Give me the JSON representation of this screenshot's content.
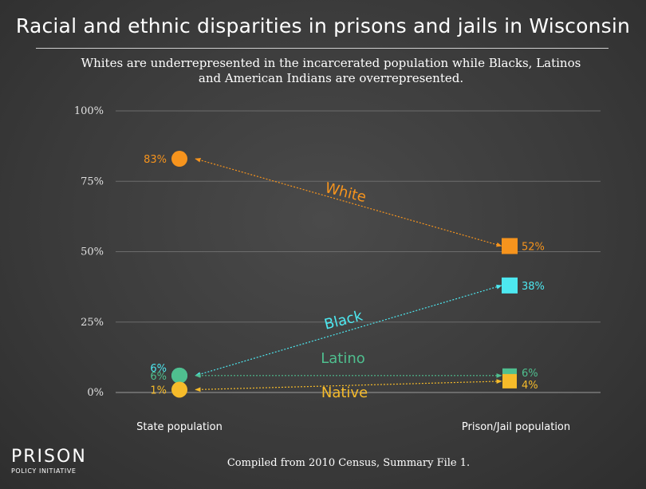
{
  "header": {
    "title": "Racial and ethnic disparities in prisons and jails in Wisconsin",
    "subtitle": "Whites are underrepresented in the incarcerated population while Blacks, Latinos and American Indians are overrepresented."
  },
  "footer": {
    "source": "Compiled from 2010 Census, Summary File 1."
  },
  "logo": {
    "line1": "PRISON",
    "line2": "POLICY INITIATIVE"
  },
  "chart_data": {
    "type": "scatter",
    "title": "Racial and ethnic disparities in prisons and jails in Wisconsin",
    "categories": [
      "State population",
      "Prison/Jail population"
    ],
    "ylim": [
      0,
      100
    ],
    "yticks": [
      0,
      25,
      50,
      75,
      100
    ],
    "ytick_labels": [
      "0%",
      "25%",
      "50%",
      "75%",
      "100%"
    ],
    "grid": true,
    "series": [
      {
        "name": "White",
        "values": [
          83,
          52
        ],
        "labels": [
          "83%",
          "52%"
        ],
        "color": "#f7941d"
      },
      {
        "name": "Black",
        "values": [
          6,
          38
        ],
        "labels": [
          "6%",
          "38%"
        ],
        "color": "#4de8f0"
      },
      {
        "name": "Latino",
        "values": [
          6,
          6
        ],
        "labels": [
          "6%",
          "6%"
        ],
        "color": "#4fbf8f"
      },
      {
        "name": "Native",
        "values": [
          1,
          4
        ],
        "labels": [
          "1%",
          "4%"
        ],
        "color": "#f6bb2a"
      }
    ]
  }
}
